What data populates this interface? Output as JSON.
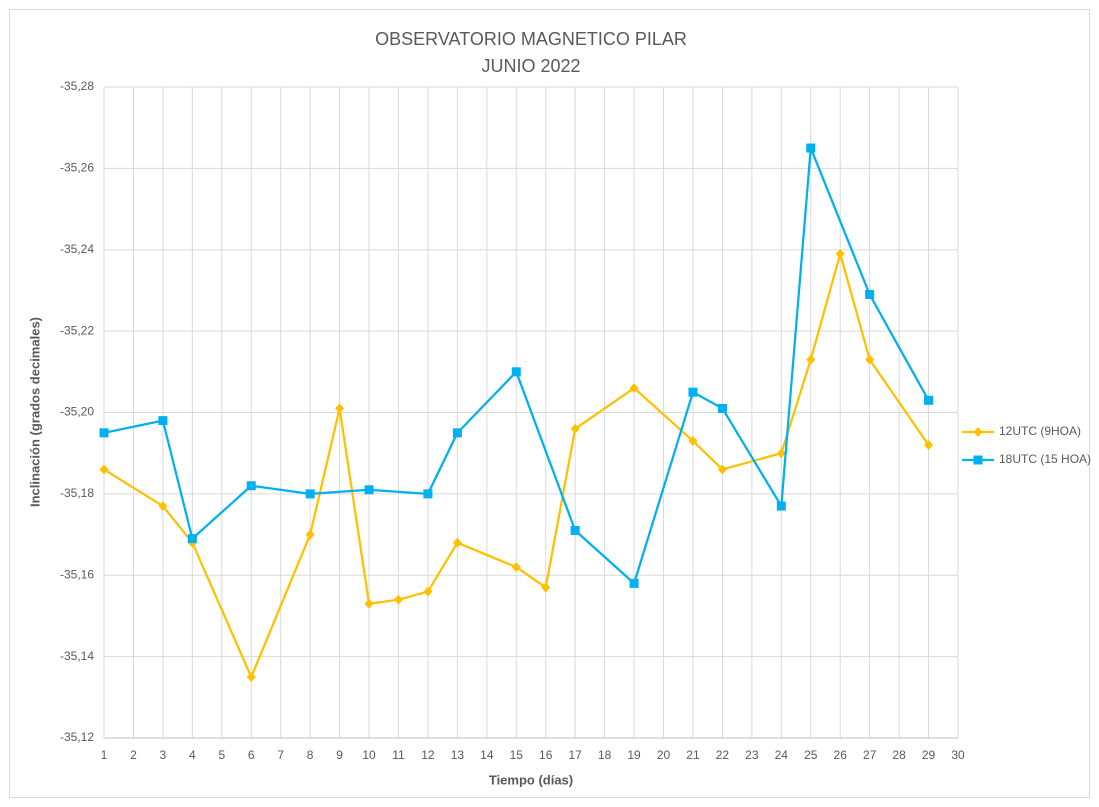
{
  "chart_data": {
    "type": "line",
    "title": "OBSERVATORIO MAGNETICO PILAR",
    "subtitle": "JUNIO 2022",
    "x_label": "Tiempo (días)",
    "y_label": "Inclinación (grados decimales)",
    "xlim": [
      1,
      30
    ],
    "xticks": [
      1,
      2,
      3,
      4,
      5,
      6,
      7,
      8,
      9,
      10,
      11,
      12,
      13,
      14,
      15,
      16,
      17,
      18,
      19,
      20,
      21,
      22,
      23,
      24,
      25,
      26,
      27,
      28,
      29,
      30
    ],
    "ylim": [
      -35.12,
      -35.28
    ],
    "yticks": [
      {
        "value": -35.12,
        "label": "-35,12"
      },
      {
        "value": -35.14,
        "label": "-35,14"
      },
      {
        "value": -35.16,
        "label": "-35,16"
      },
      {
        "value": -35.18,
        "label": "-35,18"
      },
      {
        "value": -35.2,
        "label": "-35,20"
      },
      {
        "value": -35.22,
        "label": "-35,22"
      },
      {
        "value": -35.24,
        "label": "-35,24"
      },
      {
        "value": -35.26,
        "label": "-35,26"
      },
      {
        "value": -35.28,
        "label": "-35,28"
      }
    ],
    "grid": true,
    "legend": "right",
    "series": [
      {
        "name": "12UTC (9HOA)",
        "color": "#FFC000",
        "marker": "diamond",
        "x": [
          1,
          3,
          4,
          6,
          8,
          9,
          10,
          11,
          12,
          13,
          15,
          16,
          17,
          19,
          21,
          22,
          24,
          25,
          26,
          27,
          29
        ],
        "values": [
          -35.186,
          -35.177,
          -35.168,
          -35.135,
          -35.17,
          -35.201,
          -35.153,
          -35.154,
          -35.156,
          -35.168,
          -35.162,
          -35.157,
          -35.196,
          -35.206,
          -35.193,
          -35.186,
          -35.19,
          -35.213,
          -35.239,
          -35.213,
          -35.192
        ]
      },
      {
        "name": "18UTC (15 HOA)",
        "color": "#00B0F0",
        "marker": "square",
        "x": [
          1,
          3,
          4,
          6,
          8,
          10,
          12,
          13,
          15,
          17,
          19,
          21,
          22,
          24,
          25,
          27,
          29
        ],
        "values": [
          -35.195,
          -35.198,
          -35.169,
          -35.182,
          -35.18,
          -35.181,
          -35.18,
          -35.195,
          -35.21,
          -35.171,
          -35.158,
          -35.205,
          -35.201,
          -35.177,
          -35.265,
          -35.229,
          -35.203
        ]
      }
    ]
  }
}
